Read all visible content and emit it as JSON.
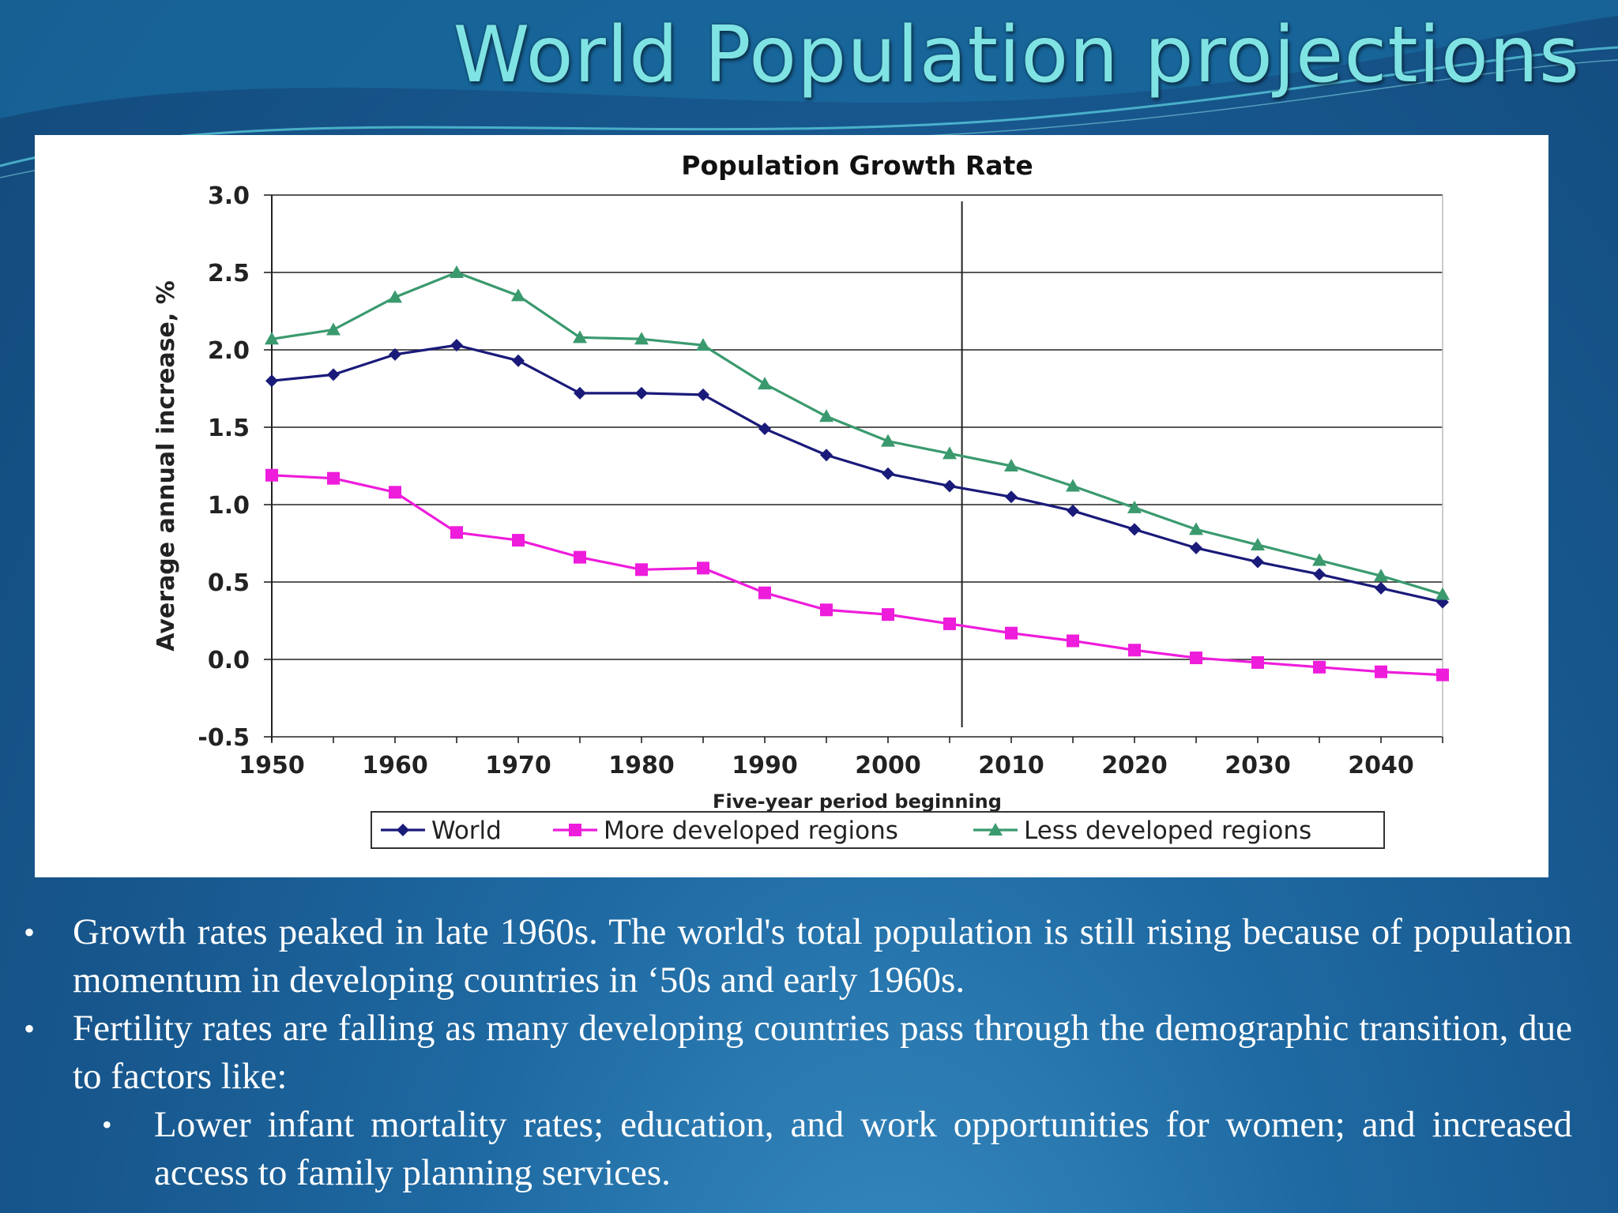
{
  "slide": {
    "title": "World Population projections",
    "bullets": [
      {
        "text": "Growth rates peaked in late 1960s. The world's total population is still rising because of population momentum in developing countries in ‘50s and early 1960s.",
        "level": 1
      },
      {
        "text": "Fertility rates are falling as many developing countries pass through the demographic transition, due to factors like:",
        "level": 1
      },
      {
        "text": "Lower infant mortality rates; education, and work opportunities for women; and increased access to family planning services.",
        "level": 2
      }
    ],
    "bullet_mark": "•"
  },
  "chart_data": {
    "type": "line",
    "title": "Population Growth Rate",
    "xlabel": "Five-year period beginning",
    "ylabel": "Average annual increase, %",
    "x": [
      1950,
      1955,
      1960,
      1965,
      1970,
      1975,
      1980,
      1985,
      1990,
      1995,
      2000,
      2005,
      2010,
      2015,
      2020,
      2025,
      2030,
      2035,
      2040,
      2045
    ],
    "x_ticks": [
      1950,
      1960,
      1970,
      1980,
      1990,
      2000,
      2010,
      2020,
      2030,
      2040
    ],
    "y_ticks": [
      "3.0",
      "2.5",
      "2.0",
      "1.5",
      "1.0",
      "0.5",
      "0.0",
      "-0.5"
    ],
    "xlim": [
      1950,
      2045
    ],
    "ylim": [
      -0.5,
      3.0
    ],
    "grid": "horizontal",
    "reference_line_x": 2006,
    "legend_position": "bottom",
    "series": [
      {
        "name": "World",
        "color": "#1a1a7a",
        "marker": "diamond",
        "values": [
          1.8,
          1.84,
          1.97,
          2.03,
          1.93,
          1.72,
          1.72,
          1.71,
          1.49,
          1.32,
          1.2,
          1.12,
          1.05,
          0.96,
          0.84,
          0.72,
          0.63,
          0.55,
          0.46,
          0.37
        ]
      },
      {
        "name": "More developed regions",
        "color": "#ee1cdb",
        "marker": "square",
        "values": [
          1.19,
          1.17,
          1.08,
          0.82,
          0.77,
          0.66,
          0.58,
          0.59,
          0.43,
          0.32,
          0.29,
          0.23,
          0.17,
          0.12,
          0.06,
          0.01,
          -0.02,
          -0.05,
          -0.08,
          -0.1
        ]
      },
      {
        "name": "Less developed regions",
        "color": "#3a9a6e",
        "marker": "triangle",
        "values": [
          2.07,
          2.13,
          2.34,
          2.5,
          2.35,
          2.08,
          2.07,
          2.03,
          1.78,
          1.57,
          1.41,
          1.33,
          1.25,
          1.12,
          0.98,
          0.84,
          0.74,
          0.64,
          0.54,
          0.42
        ]
      }
    ]
  }
}
